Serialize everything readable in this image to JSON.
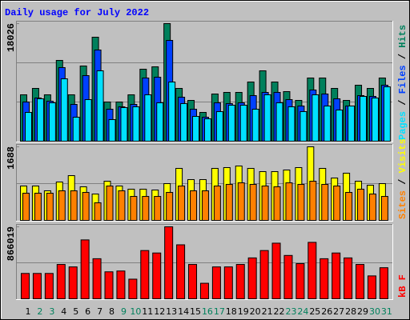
{
  "chart_data": [
    {
      "type": "bar",
      "title": "Daily usage for July 2022",
      "ylim": [
        0,
        18026
      ],
      "yticks": [
        18026
      ],
      "grid": true,
      "legend_separator": " / ",
      "series": [
        {
          "name": "Hits",
          "color": "#00805c",
          "values": [
            7112,
            8093,
            7112,
            12385,
            7112,
            11527,
            15941,
            6009,
            6009,
            7112,
            11036,
            11404,
            18026,
            8093,
            6254,
            4414,
            7235,
            7480,
            7480,
            9074,
            10791,
            9074,
            7603,
            6254,
            9687,
            9687,
            8093,
            6254,
            8584,
            8093,
            9687
          ]
        },
        {
          "name": "Files",
          "color": "#0040ff",
          "values": [
            6009,
            6622,
            6131,
            11282,
            5641,
            10055,
            13979,
            4905,
            5273,
            5641,
            9687,
            9810,
            15451,
            6744,
            4905,
            3679,
            5886,
            5763,
            5886,
            6990,
            7480,
            7480,
            6377,
            5396,
            7848,
            7235,
            6499,
            5396,
            6990,
            6867,
            8584
          ]
        },
        {
          "name": "Pages",
          "color": "#00e0ff",
          "values": [
            4414,
            6499,
            5886,
            9565,
            3679,
            6377,
            10791,
            3311,
            5150,
            5273,
            7112,
            5886,
            9074,
            5763,
            3801,
            3433,
            4537,
            5518,
            5518,
            4905,
            7112,
            5886,
            5273,
            4537,
            7112,
            5396,
            4782,
            5396,
            6867,
            6622,
            8338
          ]
        }
      ]
    },
    {
      "type": "bar",
      "ylim": [
        0,
        1688
      ],
      "yticks": [
        1688
      ],
      "grid": true,
      "legend_separator": " / ",
      "series": [
        {
          "name": "Visits",
          "color": "#ffff00",
          "values": [
            789,
            789,
            679,
            881,
            1027,
            771,
            605,
            899,
            789,
            716,
            716,
            697,
            844,
            1193,
            936,
            936,
            1193,
            1211,
            1248,
            1193,
            1119,
            1119,
            1156,
            1211,
            1688,
            1193,
            972,
            1083,
            899,
            807,
            844
          ]
        },
        {
          "name": "Sites",
          "color": "#ff8000",
          "values": [
            624,
            624,
            624,
            679,
            679,
            642,
            404,
            789,
            679,
            550,
            550,
            550,
            642,
            789,
            679,
            679,
            789,
            826,
            862,
            826,
            789,
            771,
            862,
            826,
            899,
            826,
            789,
            642,
            716,
            605,
            550
          ]
        }
      ]
    },
    {
      "type": "bar",
      "ylim": [
        0,
        866019
      ],
      "yticks": [
        866019
      ],
      "grid": true,
      "series": [
        {
          "name": "kB F",
          "color": "#ff0000",
          "values": [
            305071,
            305071,
            305071,
            413322,
            383799,
            708552,
            482209,
            324753,
            334594,
            236184,
            580619,
            551096,
            866019,
            649506,
            413322,
            186979,
            383799,
            383799,
            413322,
            492050,
            580619,
            669188,
            521573,
            423163,
            679029,
            482209,
            551096,
            492050,
            413322,
            275548,
            373958
          ]
        }
      ],
      "categories": [
        "1",
        "2",
        "3",
        "4",
        "5",
        "6",
        "7",
        "8",
        "9",
        "10",
        "11",
        "12",
        "13",
        "14",
        "15",
        "16",
        "17",
        "18",
        "19",
        "20",
        "21",
        "22",
        "23",
        "24",
        "25",
        "26",
        "27",
        "28",
        "29",
        "30",
        "31"
      ],
      "category_colors": [
        "#000000",
        "#00805c",
        "#00805c",
        "#000000",
        "#000000",
        "#000000",
        "#000000",
        "#000000",
        "#00805c",
        "#00805c",
        "#000000",
        "#000000",
        "#000000",
        "#000000",
        "#000000",
        "#00805c",
        "#00805c",
        "#000000",
        "#000000",
        "#000000",
        "#000000",
        "#000000",
        "#00805c",
        "#00805c",
        "#000000",
        "#000000",
        "#000000",
        "#000000",
        "#000000",
        "#00805c",
        "#00805c"
      ]
    }
  ]
}
